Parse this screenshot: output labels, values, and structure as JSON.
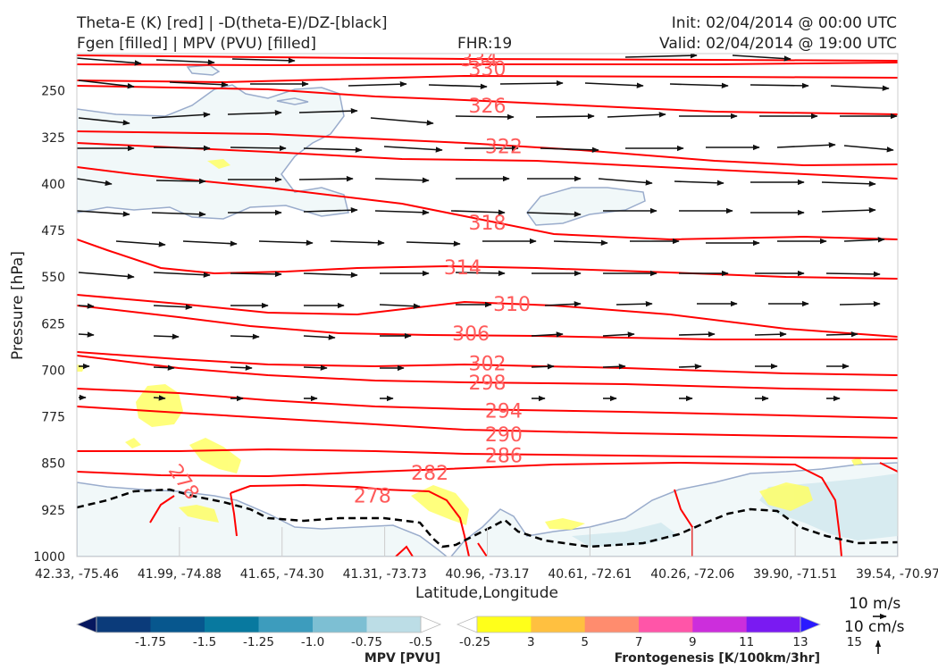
{
  "header": {
    "title_line1": "Theta-E (K) [red] | -D(theta-E)/DZ-[black]",
    "title_line2": "Fgen [filled] | MPV (PVU) [filled]",
    "fhr": "FHR:19",
    "init": "Init: 02/04/2014 @ 00:00 UTC",
    "valid": "Valid: 02/04/2014 @ 19:00 UTC"
  },
  "colors": {
    "theta_e": "#ff0000",
    "theta_e_label": "#ff5a5a",
    "dthetae_dz": "#000000",
    "mpv_outline": "#9aaccc",
    "fgen_yellow": "#ffff66"
  },
  "chart_data": {
    "type": "cross-section",
    "xlabel": "Latitude,Longitude",
    "ylabel": "Pressure [hPa]",
    "x_ticks": [
      "42.33, -75.46",
      "41.99, -74.88",
      "41.65, -74.30",
      "41.31, -73.73",
      "40.96, -73.17",
      "40.61, -72.61",
      "40.26, -72.06",
      "39.90, -71.51",
      "39.54, -70.97"
    ],
    "y_ticks": [
      250,
      325,
      400,
      475,
      550,
      625,
      700,
      775,
      850,
      925,
      1000
    ],
    "ylim": [
      190,
      1000
    ],
    "y_inverted": true,
    "theta_e_contour_labels": [
      {
        "value": "334",
        "at": [
          0.49,
          200
        ]
      },
      {
        "value": "330",
        "at": [
          0.5,
          215
        ]
      },
      {
        "value": "326",
        "at": [
          0.5,
          275
        ]
      },
      {
        "value": "322",
        "at": [
          0.52,
          340
        ]
      },
      {
        "value": "318",
        "at": [
          0.5,
          463
        ]
      },
      {
        "value": "314",
        "at": [
          0.47,
          535
        ]
      },
      {
        "value": "310",
        "at": [
          0.53,
          594
        ]
      },
      {
        "value": "306",
        "at": [
          0.48,
          642
        ]
      },
      {
        "value": "302",
        "at": [
          0.5,
          690
        ]
      },
      {
        "value": "298",
        "at": [
          0.5,
          721
        ]
      },
      {
        "value": "294",
        "at": [
          0.52,
          766
        ]
      },
      {
        "value": "290",
        "at": [
          0.52,
          804
        ]
      },
      {
        "value": "286",
        "at": [
          0.52,
          838
        ]
      },
      {
        "value": "282",
        "at": [
          0.43,
          866
        ]
      },
      {
        "value": "278",
        "at": [
          0.36,
          903
        ]
      },
      {
        "value": "278",
        "at": [
          0.13,
          880
        ]
      }
    ],
    "wind_reference": [
      "10 m/s",
      "10 cm/s"
    ]
  },
  "colorbars": {
    "mpv": {
      "label": "MPV [PVU]",
      "ticks": [
        "-1.75",
        "-1.5",
        "-1.25",
        "-1.0",
        "-0.75",
        "-0.5",
        "-0.25"
      ],
      "colors": [
        "#06175e",
        "#0b3b7a",
        "#07578e",
        "#08799f",
        "#3d9cbd",
        "#7dbfd3",
        "#bcdde6",
        "#ffffff"
      ]
    },
    "fgen": {
      "label": "Frontogenesis [K/100km/3hr]",
      "ticks": [
        "3",
        "5",
        "7",
        "9",
        "11",
        "13",
        "15"
      ],
      "colors": [
        "#ffffff",
        "#ffff1a",
        "#ffc040",
        "#ff8c6e",
        "#ff55a8",
        "#cc2edc",
        "#7a1af2",
        "#2a1aff"
      ]
    }
  }
}
